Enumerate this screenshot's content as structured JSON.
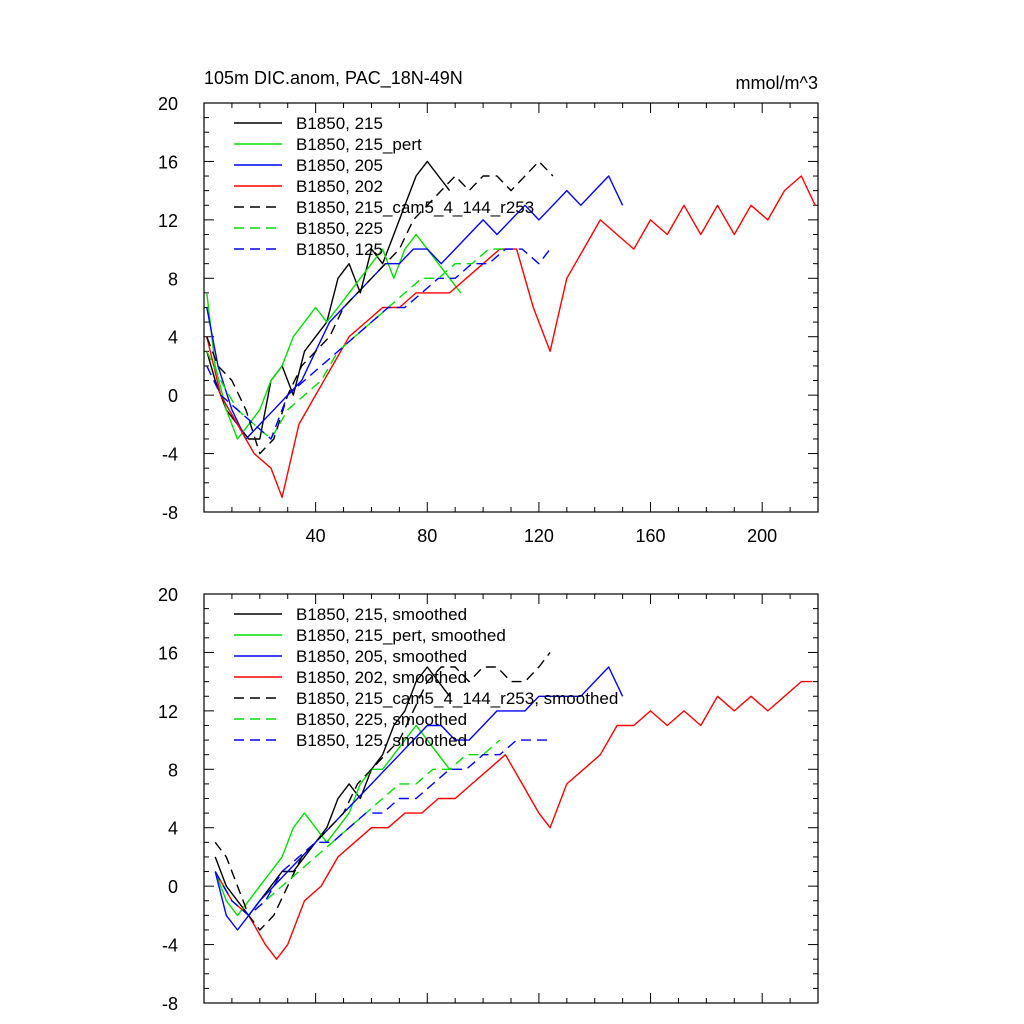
{
  "chart_data": [
    {
      "type": "line",
      "title": "105m DIC.anom, PAC_18N-49N",
      "units": "mmol/m^3",
      "xlim": [
        0,
        220
      ],
      "ylim": [
        -8,
        20
      ],
      "xticks": [
        40,
        80,
        120,
        160,
        200
      ],
      "xtick_labels": [
        "40",
        "80",
        "120",
        "160",
        "200"
      ],
      "yticks": [
        -8,
        -4,
        0,
        4,
        8,
        12,
        16,
        20
      ],
      "ytick_labels": [
        "-8",
        "-4",
        "0",
        "4",
        "8",
        "12",
        "16",
        "20"
      ],
      "legend_position": "top-left",
      "series": [
        {
          "name": "B1850, 215",
          "color": "#000000",
          "dash": "solid",
          "x": [
            1,
            4,
            8,
            12,
            16,
            20,
            24,
            28,
            32,
            36,
            40,
            44,
            48,
            52,
            56,
            60,
            64,
            68,
            72,
            76,
            80,
            84,
            88
          ],
          "values": [
            3,
            1,
            -1,
            -2,
            -3,
            -3,
            1,
            2,
            0,
            3,
            4,
            5,
            8,
            9,
            7,
            10,
            9,
            11,
            13,
            15,
            16,
            15,
            14
          ]
        },
        {
          "name": "B1850, 215_pert",
          "color": "#00e000",
          "dash": "solid",
          "x": [
            1,
            4,
            8,
            12,
            16,
            20,
            24,
            28,
            32,
            36,
            40,
            44,
            48,
            52,
            56,
            60,
            64,
            68,
            72,
            76,
            80,
            84,
            88,
            92
          ],
          "values": [
            7,
            2,
            -1,
            -3,
            -2,
            -1,
            1,
            2,
            4,
            5,
            6,
            5,
            6,
            7,
            8,
            9,
            10,
            8,
            10,
            11,
            10,
            9,
            8,
            7
          ]
        },
        {
          "name": "B1850, 205",
          "color": "#0000ff",
          "dash": "solid",
          "x": [
            1,
            5,
            10,
            15,
            20,
            25,
            30,
            35,
            40,
            45,
            50,
            55,
            60,
            65,
            70,
            75,
            80,
            85,
            90,
            95,
            100,
            105,
            110,
            115,
            120,
            125,
            130,
            135,
            140,
            145,
            150
          ],
          "values": [
            6,
            2,
            -1,
            -3,
            -2,
            -1,
            0,
            1,
            3,
            5,
            6,
            7,
            8,
            9,
            9,
            10,
            10,
            9,
            10,
            11,
            12,
            11,
            12,
            13,
            12,
            13,
            14,
            13,
            14,
            15,
            13
          ]
        },
        {
          "name": "B1850, 202",
          "color": "#ff0000",
          "dash": "solid",
          "x": [
            1,
            6,
            12,
            18,
            24,
            28,
            34,
            40,
            46,
            52,
            58,
            64,
            70,
            76,
            82,
            88,
            94,
            100,
            106,
            112,
            118,
            124,
            130,
            136,
            142,
            148,
            154,
            160,
            166,
            172,
            178,
            184,
            190,
            196,
            202,
            208,
            214,
            219
          ],
          "values": [
            4,
            0,
            -2,
            -4,
            -5,
            -7,
            -2,
            0,
            2,
            4,
            5,
            6,
            6,
            7,
            7,
            7,
            8,
            9,
            10,
            10,
            6,
            3,
            8,
            10,
            12,
            11,
            10,
            12,
            11,
            13,
            11,
            13,
            11,
            13,
            12,
            14,
            15,
            13
          ]
        },
        {
          "name": "B1850, 215_cam5_4_144_r253",
          "color": "#000000",
          "dash": "dashed",
          "x": [
            1,
            5,
            10,
            15,
            20,
            25,
            30,
            35,
            40,
            45,
            50,
            55,
            60,
            65,
            70,
            75,
            80,
            85,
            90,
            95,
            100,
            105,
            110,
            115,
            120,
            125
          ],
          "values": [
            4,
            2,
            1,
            -1,
            -4,
            -3,
            0,
            2,
            3,
            4,
            6,
            7,
            8,
            9,
            10,
            12,
            13,
            14,
            15,
            14,
            15,
            15,
            14,
            15,
            16,
            15
          ]
        },
        {
          "name": "B1850, 225",
          "color": "#00e000",
          "dash": "dashed",
          "x": [
            1,
            6,
            12,
            18,
            24,
            30,
            36,
            42,
            48,
            54,
            60,
            66,
            72,
            78,
            84,
            90,
            96,
            102,
            108
          ],
          "values": [
            3,
            1,
            -1,
            -2,
            -3,
            -1,
            0,
            1,
            3,
            4,
            5,
            6,
            7,
            8,
            8,
            9,
            9,
            10,
            10
          ]
        },
        {
          "name": "B1850, 125",
          "color": "#0000ff",
          "dash": "dashed",
          "x": [
            1,
            6,
            12,
            18,
            24,
            30,
            36,
            42,
            48,
            54,
            60,
            66,
            72,
            78,
            84,
            90,
            96,
            102,
            108,
            114,
            120,
            124
          ],
          "values": [
            2,
            0,
            -1,
            -2,
            -3,
            0,
            1,
            2,
            3,
            4,
            5,
            6,
            6,
            7,
            8,
            8,
            9,
            9,
            10,
            10,
            9,
            10
          ]
        }
      ]
    },
    {
      "type": "line",
      "title": "",
      "units": "",
      "xlim": [
        0,
        220
      ],
      "ylim": [
        -8,
        20
      ],
      "xticks": [
        40,
        80,
        120,
        160,
        200
      ],
      "xtick_labels": [],
      "yticks": [
        -8,
        -4,
        0,
        4,
        8,
        12,
        16,
        20
      ],
      "ytick_labels": [
        "-8",
        "-4",
        "0",
        "4",
        "8",
        "12",
        "16",
        "20"
      ],
      "legend_position": "top-left",
      "series": [
        {
          "name": "B1850, 215, smoothed",
          "color": "#000000",
          "dash": "solid",
          "x": [
            4,
            8,
            12,
            16,
            20,
            24,
            28,
            32,
            36,
            40,
            44,
            48,
            52,
            56,
            60,
            64,
            68,
            72,
            76,
            80,
            84,
            88
          ],
          "values": [
            2,
            0,
            -1,
            -2,
            -1,
            0,
            1,
            1,
            2,
            3,
            4,
            6,
            7,
            6,
            8,
            9,
            11,
            12,
            14,
            15,
            14,
            13
          ]
        },
        {
          "name": "B1850, 215_pert, smoothed",
          "color": "#00e000",
          "dash": "solid",
          "x": [
            4,
            8,
            12,
            16,
            20,
            24,
            28,
            32,
            36,
            40,
            44,
            48,
            52,
            56,
            60,
            64,
            68,
            72,
            76,
            80,
            84,
            88,
            92
          ],
          "values": [
            1,
            -1,
            -2,
            -1,
            0,
            1,
            2,
            4,
            5,
            4,
            3,
            4,
            5,
            7,
            8,
            8,
            9,
            10,
            11,
            10,
            9,
            8,
            8
          ]
        },
        {
          "name": "B1850, 205, smoothed",
          "color": "#0000ff",
          "dash": "solid",
          "x": [
            4,
            8,
            12,
            16,
            20,
            25,
            30,
            35,
            40,
            45,
            50,
            55,
            60,
            65,
            70,
            75,
            80,
            85,
            90,
            95,
            100,
            105,
            110,
            115,
            120,
            125,
            130,
            135,
            140,
            145,
            150
          ],
          "values": [
            1,
            -2,
            -3,
            -2,
            -1,
            0,
            1,
            2,
            3,
            4,
            5,
            6,
            7,
            8,
            9,
            10,
            11,
            11,
            10,
            10,
            11,
            12,
            12,
            12,
            13,
            13,
            13,
            13,
            14,
            15,
            13
          ]
        },
        {
          "name": "B1850, 202, smoothed",
          "color": "#ff0000",
          "dash": "solid",
          "x": [
            4,
            10,
            16,
            22,
            26,
            30,
            36,
            42,
            48,
            54,
            60,
            66,
            72,
            78,
            84,
            90,
            96,
            102,
            108,
            114,
            120,
            124,
            130,
            136,
            142,
            148,
            154,
            160,
            166,
            172,
            178,
            184,
            190,
            196,
            202,
            208,
            214,
            218
          ],
          "values": [
            1,
            -1,
            -2,
            -4,
            -5,
            -4,
            -1,
            0,
            2,
            3,
            4,
            4,
            5,
            5,
            6,
            6,
            7,
            8,
            9,
            7,
            5,
            4,
            7,
            8,
            9,
            11,
            11,
            12,
            11,
            12,
            11,
            13,
            12,
            13,
            12,
            13,
            14,
            14
          ]
        },
        {
          "name": "B1850, 215_cam5_4_144_r253, smoothed",
          "color": "#000000",
          "dash": "dashed",
          "x": [
            4,
            8,
            12,
            16,
            20,
            25,
            30,
            35,
            40,
            45,
            50,
            55,
            60,
            65,
            70,
            75,
            80,
            85,
            90,
            95,
            100,
            105,
            110,
            115,
            120,
            124
          ],
          "values": [
            3,
            2,
            0,
            -2,
            -3,
            -2,
            0,
            2,
            3,
            4,
            5,
            7,
            8,
            9,
            10,
            12,
            14,
            15,
            15,
            14,
            15,
            15,
            14,
            14,
            15,
            16
          ]
        },
        {
          "name": "B1850, 225, smoothed",
          "color": "#00e000",
          "dash": "dashed",
          "x": [
            4,
            10,
            16,
            22,
            28,
            34,
            40,
            46,
            52,
            58,
            64,
            70,
            76,
            82,
            88,
            94,
            100,
            106
          ],
          "values": [
            1,
            -1,
            -2,
            -1,
            0,
            1,
            2,
            3,
            4,
            5,
            6,
            7,
            7,
            8,
            8,
            9,
            9,
            10
          ]
        },
        {
          "name": "B1850, 125, smoothed",
          "color": "#0000ff",
          "dash": "dashed",
          "x": [
            4,
            10,
            16,
            22,
            28,
            34,
            40,
            46,
            52,
            58,
            64,
            70,
            76,
            82,
            88,
            94,
            100,
            106,
            112,
            118,
            124
          ],
          "values": [
            1,
            -1,
            -2,
            -1,
            1,
            2,
            3,
            3,
            4,
            5,
            5,
            6,
            6,
            7,
            8,
            8,
            9,
            9,
            10,
            10,
            10
          ]
        }
      ]
    }
  ]
}
